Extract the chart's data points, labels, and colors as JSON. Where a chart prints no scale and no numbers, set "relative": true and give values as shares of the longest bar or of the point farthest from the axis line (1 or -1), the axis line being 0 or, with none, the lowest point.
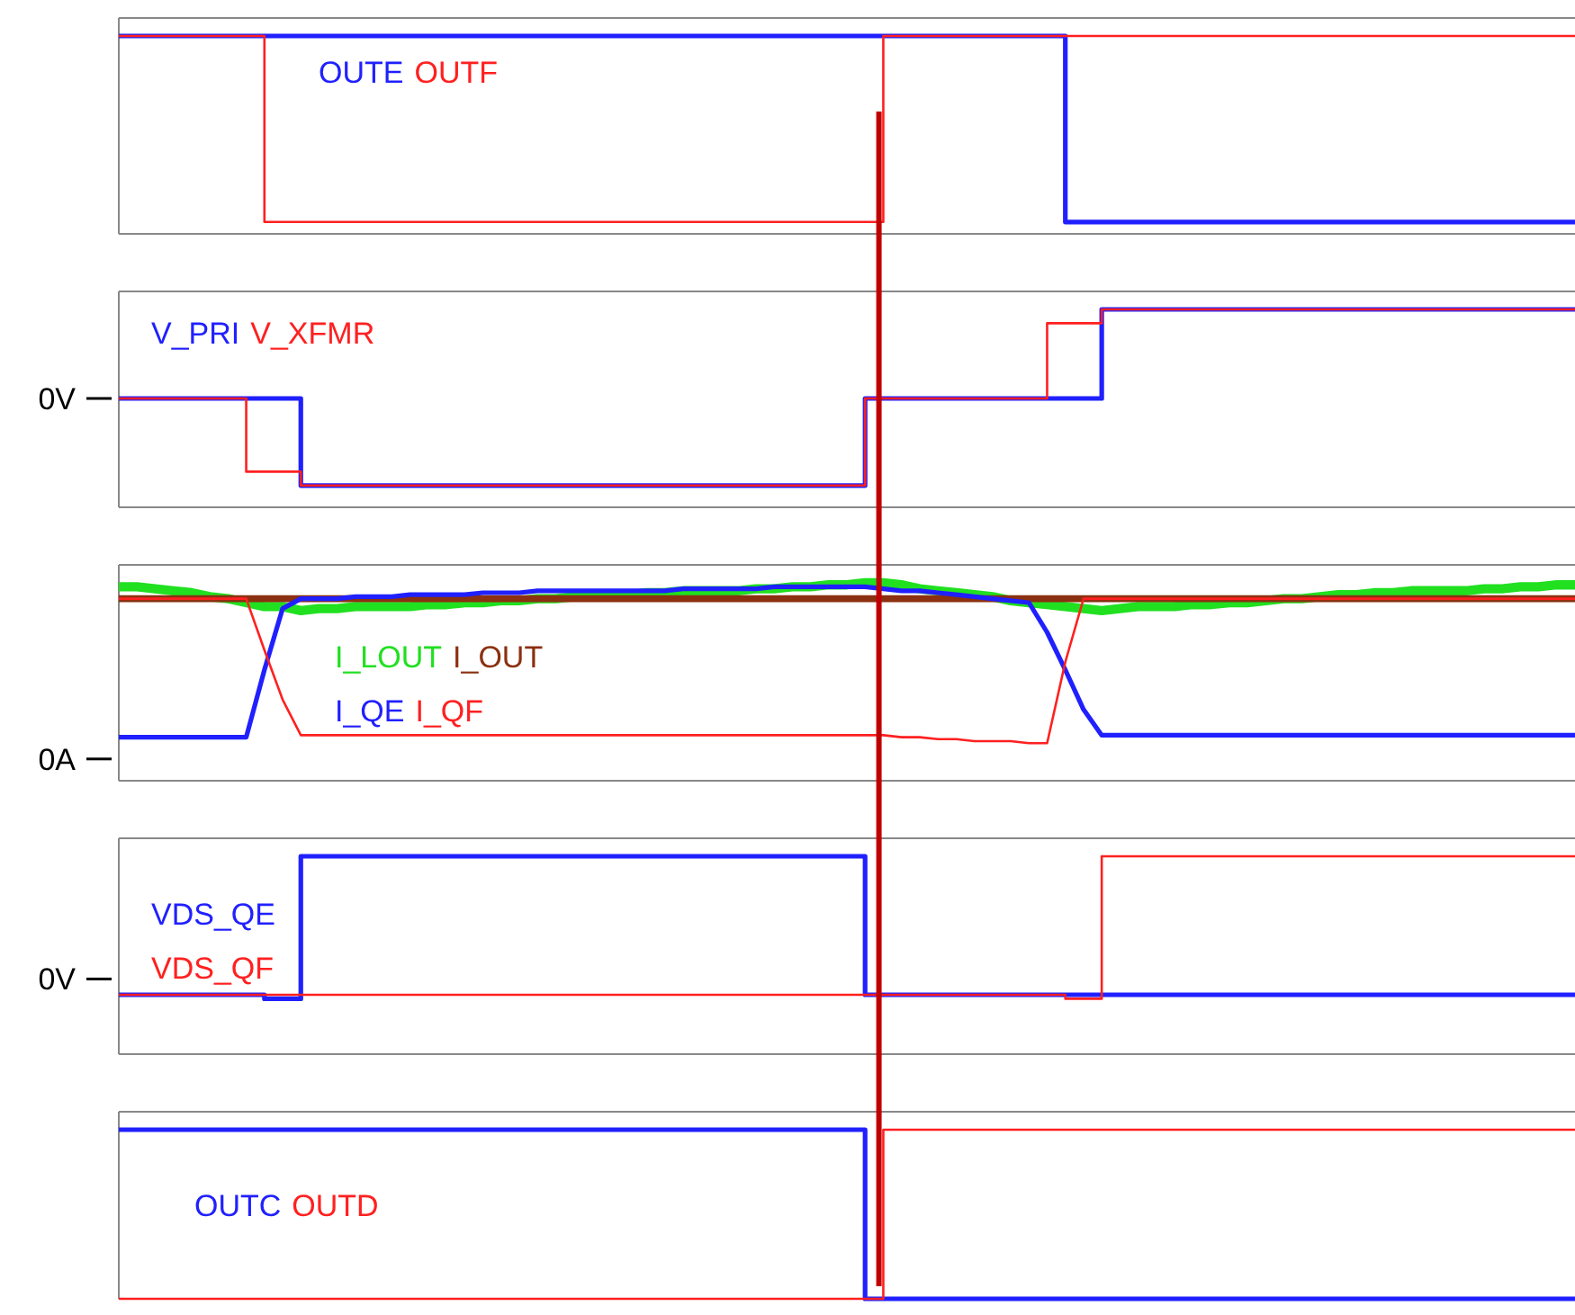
{
  "chart_data": [
    {
      "type": "step",
      "relative": true,
      "categories": [
        null,
        null,
        null,
        null,
        null,
        null,
        null,
        null,
        null,
        null,
        null,
        null,
        null,
        null,
        null,
        null,
        null,
        null,
        null,
        null,
        null,
        null,
        null,
        null,
        null,
        null,
        null,
        null,
        null,
        null,
        null,
        null,
        null,
        null,
        null,
        null,
        null,
        null,
        null,
        null,
        null,
        null,
        null,
        null,
        null,
        null,
        null,
        null,
        null,
        null,
        null,
        null,
        null,
        null,
        null,
        null,
        null,
        null,
        null,
        null,
        null,
        null,
        null,
        null,
        null,
        null,
        null,
        null,
        null,
        null,
        null,
        null,
        null,
        null,
        null,
        null,
        null,
        null,
        null,
        null,
        null
      ],
      "series": [
        {
          "name": "OUTE",
          "color": "#2020ff",
          "values": [
            1,
            1,
            1,
            1,
            1,
            1,
            1,
            1,
            1,
            1,
            1,
            1,
            1,
            1,
            1,
            1,
            1,
            1,
            1,
            1,
            1,
            1,
            1,
            1,
            1,
            1,
            1,
            1,
            1,
            1,
            1,
            1,
            1,
            1,
            1,
            1,
            1,
            1,
            1,
            1,
            1,
            1,
            1,
            1,
            1,
            1,
            1,
            1,
            1,
            1,
            1,
            1,
            0.06,
            0.06,
            0.06,
            0.06,
            0.06,
            0.06,
            0.06,
            0.06,
            0.06,
            0.06,
            0.06,
            0.06,
            0.06,
            0.06,
            0.06,
            0.06,
            0.06,
            0.06,
            0.06,
            0.06,
            0.06,
            0.06,
            0.06,
            0.06,
            0.06,
            0.06,
            0.06,
            0.06,
            0.06
          ]
        },
        {
          "name": "OUTF",
          "color": "#ff2020",
          "values": [
            1,
            1,
            1,
            1,
            1,
            1,
            1,
            1,
            0.06,
            0.06,
            0.06,
            0.06,
            0.06,
            0.06,
            0.06,
            0.06,
            0.06,
            0.06,
            0.06,
            0.06,
            0.06,
            0.06,
            0.06,
            0.06,
            0.06,
            0.06,
            0.06,
            0.06,
            0.06,
            0.06,
            0.06,
            0.06,
            0.06,
            0.06,
            0.06,
            0.06,
            0.06,
            0.06,
            0.06,
            0.06,
            0.06,
            0.06,
            1,
            1,
            1,
            1,
            1,
            1,
            1,
            1,
            1,
            1,
            1,
            1,
            1,
            1,
            1,
            1,
            1,
            1,
            1,
            1,
            1,
            1,
            1,
            1,
            1,
            1,
            1,
            1,
            1,
            1,
            1,
            1,
            1,
            1,
            1,
            1,
            1,
            1,
            1
          ]
        }
      ]
    },
    {
      "type": "step",
      "relative": true,
      "categories": [
        null,
        null,
        null,
        null,
        null,
        null,
        null,
        null,
        null,
        null,
        null,
        null,
        null,
        null,
        null,
        null,
        null,
        null,
        null,
        null,
        null,
        null,
        null,
        null,
        null,
        null,
        null,
        null,
        null,
        null,
        null,
        null,
        null,
        null,
        null,
        null,
        null,
        null,
        null,
        null,
        null,
        null,
        null,
        null,
        null,
        null,
        null,
        null,
        null,
        null,
        null,
        null,
        null,
        null,
        null,
        null,
        null,
        null,
        null,
        null,
        null,
        null,
        null,
        null,
        null,
        null,
        null,
        null,
        null,
        null,
        null,
        null,
        null,
        null,
        null,
        null,
        null,
        null,
        null,
        null,
        null
      ],
      "ref_lines": [
        {
          "axis": "y",
          "value": 0.55,
          "label": "0V"
        }
      ],
      "series": [
        {
          "name": "V_PRI",
          "color": "#2020ff",
          "values": [
            0.55,
            0.55,
            0.55,
            0.55,
            0.55,
            0.55,
            0.55,
            0.55,
            0.55,
            0.55,
            0.11,
            0.11,
            0.11,
            0.11,
            0.11,
            0.11,
            0.11,
            0.11,
            0.11,
            0.11,
            0.11,
            0.11,
            0.11,
            0.11,
            0.11,
            0.11,
            0.11,
            0.11,
            0.11,
            0.11,
            0.11,
            0.11,
            0.11,
            0.11,
            0.11,
            0.11,
            0.11,
            0.11,
            0.11,
            0.11,
            0.11,
            0.55,
            0.55,
            0.55,
            0.55,
            0.55,
            0.55,
            0.55,
            0.55,
            0.55,
            0.55,
            0.55,
            0.55,
            0.55,
            1,
            1,
            1,
            1,
            1,
            1,
            1,
            1,
            1,
            1,
            1,
            1,
            1,
            1,
            1,
            1,
            1,
            1,
            1,
            1,
            1,
            1,
            1,
            1,
            1,
            1,
            1
          ]
        },
        {
          "name": "V_XFMR",
          "color": "#ff2020",
          "values": [
            0.55,
            0.55,
            0.55,
            0.55,
            0.55,
            0.55,
            0.55,
            0.18,
            0.18,
            0.18,
            0.11,
            0.11,
            0.11,
            0.11,
            0.11,
            0.11,
            0.11,
            0.11,
            0.11,
            0.11,
            0.11,
            0.11,
            0.11,
            0.11,
            0.11,
            0.11,
            0.11,
            0.11,
            0.11,
            0.11,
            0.11,
            0.11,
            0.11,
            0.11,
            0.11,
            0.11,
            0.11,
            0.11,
            0.11,
            0.11,
            0.11,
            0.55,
            0.55,
            0.55,
            0.55,
            0.55,
            0.55,
            0.55,
            0.55,
            0.55,
            0.55,
            0.93,
            0.93,
            0.93,
            1,
            1,
            1,
            1,
            1,
            1,
            1,
            1,
            1,
            1,
            1,
            1,
            1,
            1,
            1,
            1,
            1,
            1,
            1,
            1,
            1,
            1,
            1,
            1,
            1,
            1,
            1
          ]
        }
      ]
    },
    {
      "type": "line",
      "relative": true,
      "categories": [
        null,
        null,
        null,
        null,
        null,
        null,
        null,
        null,
        null,
        null,
        null,
        null,
        null,
        null,
        null,
        null,
        null,
        null,
        null,
        null,
        null,
        null,
        null,
        null,
        null,
        null,
        null,
        null,
        null,
        null,
        null,
        null,
        null,
        null,
        null,
        null,
        null,
        null,
        null,
        null,
        null,
        null,
        null,
        null,
        null,
        null,
        null,
        null,
        null,
        null,
        null,
        null,
        null,
        null,
        null,
        null,
        null,
        null,
        null,
        null,
        null,
        null,
        null,
        null,
        null,
        null,
        null,
        null,
        null,
        null,
        null,
        null,
        null,
        null,
        null,
        null,
        null,
        null,
        null,
        null,
        null
      ],
      "ref_lines": [
        {
          "axis": "y",
          "value": 0.11,
          "label": "0A"
        }
      ],
      "series": [
        {
          "name": "I_LOUT",
          "color": "#20e020",
          "values": [
            0.98,
            0.98,
            0.97,
            0.96,
            0.95,
            0.93,
            0.92,
            0.9,
            0.88,
            0.88,
            0.86,
            0.87,
            0.87,
            0.88,
            0.88,
            0.88,
            0.88,
            0.89,
            0.89,
            0.9,
            0.9,
            0.91,
            0.91,
            0.92,
            0.92,
            0.93,
            0.93,
            0.94,
            0.94,
            0.95,
            0.95,
            0.96,
            0.96,
            0.96,
            0.96,
            0.97,
            0.97,
            0.98,
            0.98,
            0.99,
            0.99,
            1,
            1,
            0.99,
            0.97,
            0.96,
            0.95,
            0.94,
            0.93,
            0.91,
            0.9,
            0.89,
            0.88,
            0.87,
            0.86,
            0.87,
            0.88,
            0.88,
            0.88,
            0.89,
            0.89,
            0.9,
            0.9,
            0.91,
            0.92,
            0.92,
            0.93,
            0.94,
            0.94,
            0.95,
            0.95,
            0.96,
            0.96,
            0.96,
            0.96,
            0.97,
            0.97,
            0.98,
            0.98,
            0.99,
            0.99
          ]
        },
        {
          "name": "I_OUT",
          "color": "#8b3010",
          "values": [
            0.92,
            0.92,
            0.92,
            0.92,
            0.92,
            0.92,
            0.92,
            0.92,
            0.92,
            0.92,
            0.92,
            0.92,
            0.92,
            0.92,
            0.92,
            0.92,
            0.92,
            0.92,
            0.92,
            0.92,
            0.92,
            0.92,
            0.92,
            0.92,
            0.92,
            0.92,
            0.92,
            0.92,
            0.92,
            0.92,
            0.92,
            0.92,
            0.92,
            0.92,
            0.92,
            0.92,
            0.92,
            0.92,
            0.92,
            0.92,
            0.92,
            0.92,
            0.92,
            0.92,
            0.92,
            0.92,
            0.92,
            0.92,
            0.92,
            0.92,
            0.92,
            0.92,
            0.92,
            0.92,
            0.92,
            0.92,
            0.92,
            0.92,
            0.92,
            0.92,
            0.92,
            0.92,
            0.92,
            0.92,
            0.92,
            0.92,
            0.92,
            0.92,
            0.92,
            0.92,
            0.92,
            0.92,
            0.92,
            0.92,
            0.92,
            0.92,
            0.92,
            0.92,
            0.92,
            0.92,
            0.92
          ]
        },
        {
          "name": "I_QE",
          "color": "#2020ff",
          "values": [
            0.22,
            0.22,
            0.22,
            0.22,
            0.22,
            0.22,
            0.22,
            0.22,
            0.56,
            0.87,
            0.92,
            0.92,
            0.92,
            0.93,
            0.93,
            0.93,
            0.94,
            0.94,
            0.94,
            0.94,
            0.95,
            0.95,
            0.95,
            0.96,
            0.96,
            0.96,
            0.96,
            0.96,
            0.96,
            0.96,
            0.96,
            0.97,
            0.97,
            0.97,
            0.97,
            0.97,
            0.98,
            0.98,
            0.98,
            0.98,
            0.98,
            0.98,
            0.97,
            0.96,
            0.96,
            0.95,
            0.94,
            0.93,
            0.92,
            0.91,
            0.9,
            0.75,
            0.56,
            0.36,
            0.23,
            0.23,
            0.23,
            0.23,
            0.23,
            0.23,
            0.23,
            0.23,
            0.23,
            0.23,
            0.23,
            0.23,
            0.23,
            0.23,
            0.23,
            0.23,
            0.23,
            0.23,
            0.23,
            0.23,
            0.23,
            0.23,
            0.23,
            0.23,
            0.23,
            0.23,
            0.23
          ]
        },
        {
          "name": "I_QF",
          "color": "#ff2020",
          "values": [
            0.92,
            0.92,
            0.92,
            0.92,
            0.92,
            0.92,
            0.92,
            0.92,
            0.66,
            0.41,
            0.23,
            0.23,
            0.23,
            0.23,
            0.23,
            0.23,
            0.23,
            0.23,
            0.23,
            0.23,
            0.23,
            0.23,
            0.23,
            0.23,
            0.23,
            0.23,
            0.23,
            0.23,
            0.23,
            0.23,
            0.23,
            0.23,
            0.23,
            0.23,
            0.23,
            0.23,
            0.23,
            0.23,
            0.23,
            0.23,
            0.23,
            0.23,
            0.23,
            0.22,
            0.22,
            0.21,
            0.21,
            0.2,
            0.2,
            0.2,
            0.19,
            0.19,
            0.6,
            0.92,
            0.92,
            0.92,
            0.92,
            0.92,
            0.92,
            0.92,
            0.92,
            0.92,
            0.92,
            0.92,
            0.92,
            0.92,
            0.92,
            0.92,
            0.92,
            0.92,
            0.92,
            0.92,
            0.92,
            0.92,
            0.92,
            0.92,
            0.92,
            0.92,
            0.92,
            0.92,
            0.92
          ]
        }
      ]
    },
    {
      "type": "step",
      "relative": true,
      "categories": [
        null,
        null,
        null,
        null,
        null,
        null,
        null,
        null,
        null,
        null,
        null,
        null,
        null,
        null,
        null,
        null,
        null,
        null,
        null,
        null,
        null,
        null,
        null,
        null,
        null,
        null,
        null,
        null,
        null,
        null,
        null,
        null,
        null,
        null,
        null,
        null,
        null,
        null,
        null,
        null,
        null,
        null,
        null,
        null,
        null,
        null,
        null,
        null,
        null,
        null,
        null,
        null,
        null,
        null,
        null,
        null,
        null,
        null,
        null,
        null,
        null,
        null,
        null,
        null,
        null,
        null,
        null,
        null,
        null,
        null,
        null,
        null,
        null,
        null,
        null,
        null,
        null,
        null,
        null,
        null,
        null
      ],
      "ref_lines": [
        {
          "axis": "y",
          "value": 0.38,
          "label": "0V"
        }
      ],
      "series": [
        {
          "name": "VDS_QE",
          "color": "#2020ff",
          "values": [
            0.3,
            0.3,
            0.3,
            0.3,
            0.3,
            0.3,
            0.3,
            0.3,
            0.28,
            0.28,
            1,
            1,
            1,
            1,
            1,
            1,
            1,
            1,
            1,
            1,
            1,
            1,
            1,
            1,
            1,
            1,
            1,
            1,
            1,
            1,
            1,
            1,
            1,
            1,
            1,
            1,
            1,
            1,
            1,
            1,
            1,
            0.3,
            0.3,
            0.3,
            0.3,
            0.3,
            0.3,
            0.3,
            0.3,
            0.3,
            0.3,
            0.3,
            0.3,
            0.3,
            0.3,
            0.3,
            0.3,
            0.3,
            0.3,
            0.3,
            0.3,
            0.3,
            0.3,
            0.3,
            0.3,
            0.3,
            0.3,
            0.3,
            0.3,
            0.3,
            0.3,
            0.3,
            0.3,
            0.3,
            0.3,
            0.3,
            0.3,
            0.3,
            0.3,
            0.3,
            0.3
          ]
        },
        {
          "name": "VDS_QF",
          "color": "#ff2020",
          "values": [
            0.3,
            0.3,
            0.3,
            0.3,
            0.3,
            0.3,
            0.3,
            0.3,
            0.3,
            0.3,
            0.3,
            0.3,
            0.3,
            0.3,
            0.3,
            0.3,
            0.3,
            0.3,
            0.3,
            0.3,
            0.3,
            0.3,
            0.3,
            0.3,
            0.3,
            0.3,
            0.3,
            0.3,
            0.3,
            0.3,
            0.3,
            0.3,
            0.3,
            0.3,
            0.3,
            0.3,
            0.3,
            0.3,
            0.3,
            0.3,
            0.3,
            0.3,
            0.3,
            0.3,
            0.3,
            0.3,
            0.3,
            0.3,
            0.3,
            0.3,
            0.3,
            0.3,
            0.28,
            0.28,
            1,
            1,
            1,
            1,
            1,
            1,
            1,
            1,
            1,
            1,
            1,
            1,
            1,
            1,
            1,
            1,
            1,
            1,
            1,
            1,
            1,
            1,
            1,
            1,
            1,
            1,
            1
          ]
        }
      ]
    },
    {
      "type": "step",
      "relative": true,
      "categories": [
        null,
        null,
        null,
        null,
        null,
        null,
        null,
        null,
        null,
        null,
        null,
        null,
        null,
        null,
        null,
        null,
        null,
        null,
        null,
        null,
        null,
        null,
        null,
        null,
        null,
        null,
        null,
        null,
        null,
        null,
        null,
        null,
        null,
        null,
        null,
        null,
        null,
        null,
        null,
        null,
        null,
        null,
        null,
        null,
        null,
        null,
        null,
        null,
        null,
        null,
        null,
        null,
        null,
        null,
        null,
        null,
        null,
        null,
        null,
        null,
        null,
        null,
        null,
        null,
        null,
        null,
        null,
        null,
        null,
        null,
        null,
        null,
        null,
        null,
        null,
        null,
        null,
        null,
        null,
        null,
        null
      ],
      "series": [
        {
          "name": "OUTC",
          "color": "#2020ff",
          "values": [
            1,
            1,
            1,
            1,
            1,
            1,
            1,
            1,
            1,
            1,
            1,
            1,
            1,
            1,
            1,
            1,
            1,
            1,
            1,
            1,
            1,
            1,
            1,
            1,
            1,
            1,
            1,
            1,
            1,
            1,
            1,
            1,
            1,
            1,
            1,
            1,
            1,
            1,
            1,
            1,
            1,
            0,
            0,
            0,
            0,
            0,
            0,
            0,
            0,
            0,
            0,
            0,
            0,
            0,
            0,
            0,
            0,
            0,
            0,
            0,
            0,
            0,
            0,
            0,
            0,
            0,
            0,
            0,
            0,
            0,
            0,
            0,
            0,
            0,
            0,
            0,
            0,
            0,
            0,
            0,
            0
          ]
        },
        {
          "name": "OUTD",
          "color": "#ff2020",
          "values": [
            0,
            0,
            0,
            0,
            0,
            0,
            0,
            0,
            0,
            0,
            0,
            0,
            0,
            0,
            0,
            0,
            0,
            0,
            0,
            0,
            0,
            0,
            0,
            0,
            0,
            0,
            0,
            0,
            0,
            0,
            0,
            0,
            0,
            0,
            0,
            0,
            0,
            0,
            0,
            0,
            0,
            0,
            1,
            1,
            1,
            1,
            1,
            1,
            1,
            1,
            1,
            1,
            1,
            1,
            1,
            1,
            1,
            1,
            1,
            1,
            1,
            1,
            1,
            1,
            1,
            1,
            1,
            1,
            1,
            1,
            1,
            1,
            1,
            1,
            1,
            1,
            1,
            1,
            1,
            1,
            1
          ]
        }
      ]
    }
  ]
}
